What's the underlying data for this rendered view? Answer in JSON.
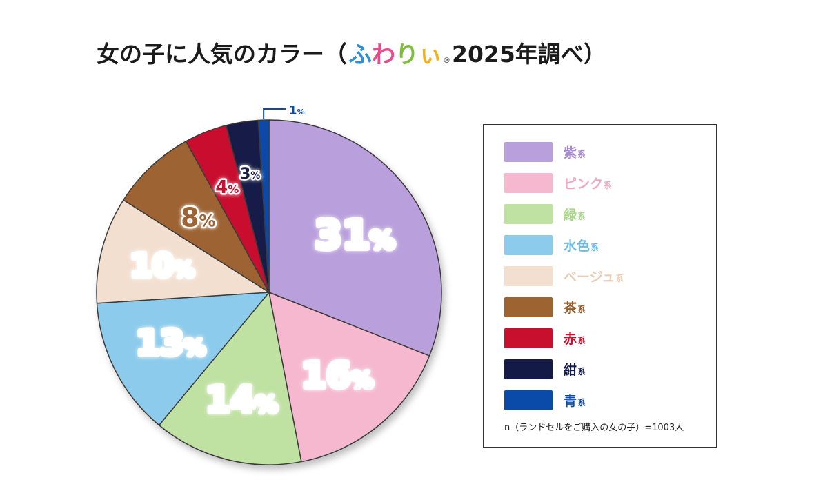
{
  "title": {
    "prefix": "女の子に人気のカラー（",
    "brand_chars": [
      {
        "char": "ふ",
        "color": "#2f8fd6"
      },
      {
        "char": "わ",
        "color": "#e84c8b"
      },
      {
        "char": "り",
        "color": "#7cbd3c"
      },
      {
        "char": "ぃ",
        "color": "#f2b21b"
      }
    ],
    "brand_mark": "®",
    "suffix": "2025年調べ）"
  },
  "chart_data": {
    "type": "pie",
    "title": "女の子に人気のカラー（ふわりぃ® 2025年調べ）",
    "slices": [
      {
        "name": "紫系",
        "value": 31,
        "label": "31",
        "color": "#b9a0dc"
      },
      {
        "name": "ピンク系",
        "value": 16,
        "label": "16",
        "color": "#f5b8cf"
      },
      {
        "name": "緑系",
        "value": 14,
        "label": "14",
        "color": "#bfe1a2"
      },
      {
        "name": "水色系",
        "value": 13,
        "label": "13",
        "color": "#8ccbec"
      },
      {
        "name": "ベージュ系",
        "value": 10,
        "label": "10",
        "color": "#f3dfd0"
      },
      {
        "name": "茶系",
        "value": 8,
        "label": "8",
        "color": "#9d6432"
      },
      {
        "name": "赤系",
        "value": 4,
        "label": "4",
        "color": "#c8102e"
      },
      {
        "name": "紺系",
        "value": 3,
        "label": "3",
        "color": "#141a46"
      },
      {
        "name": "青系",
        "value": 1,
        "label": "1",
        "color": "#0a4aa8"
      }
    ],
    "unit": "%",
    "legend_position": "right"
  },
  "legend": {
    "items": [
      {
        "main": "紫",
        "suffix": "系",
        "color": "#b9a0dc",
        "text_color": "#a98bd1"
      },
      {
        "main": "ピンク",
        "suffix": "系",
        "color": "#f5b8cf",
        "text_color": "#f0a7c2"
      },
      {
        "main": "緑",
        "suffix": "系",
        "color": "#bfe1a2",
        "text_color": "#a8d68a"
      },
      {
        "main": "水色",
        "suffix": "系",
        "color": "#8ccbec",
        "text_color": "#6dbde6"
      },
      {
        "main": "ベージュ",
        "suffix": "系",
        "color": "#f3dfd0",
        "text_color": "#e9ccb6"
      },
      {
        "main": "茶",
        "suffix": "系",
        "color": "#9d6432",
        "text_color": "#955c2c"
      },
      {
        "main": "赤",
        "suffix": "系",
        "color": "#c8102e",
        "text_color": "#c8102e"
      },
      {
        "main": "紺",
        "suffix": "系",
        "color": "#141a46",
        "text_color": "#141a46"
      },
      {
        "main": "青",
        "suffix": "系",
        "color": "#0a4aa8",
        "text_color": "#0a4aa8"
      }
    ],
    "note": "n（ランドセルをご購入の女の子）=1003人"
  }
}
